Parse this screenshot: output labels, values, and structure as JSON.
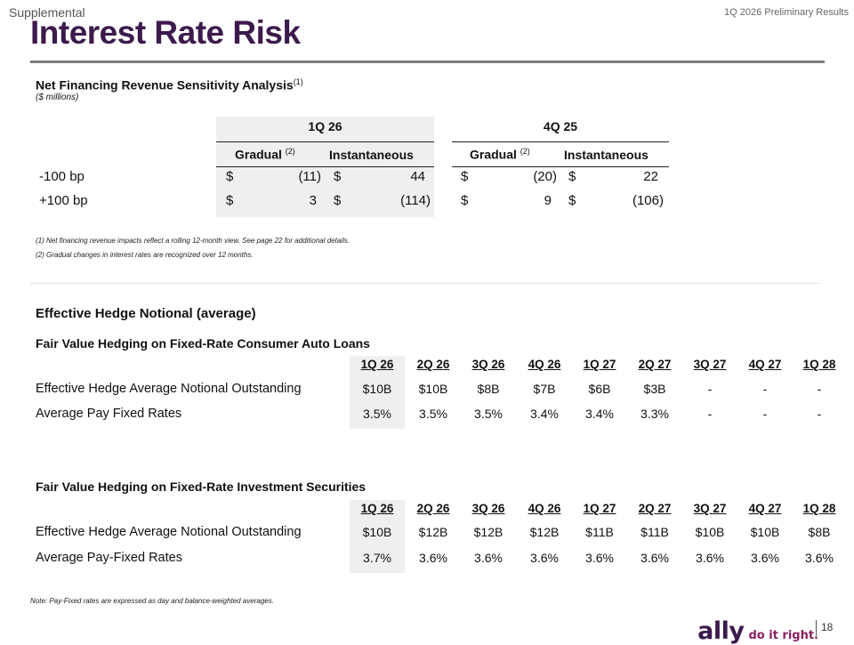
{
  "header": {
    "section": "Supplemental",
    "period_label": "1Q 2026 Preliminary Results",
    "title": "Interest Rate Risk"
  },
  "sensitivity": {
    "heading": "Net Financing Revenue Sensitivity Analysis",
    "heading_footnote": "(1)",
    "units": "($ millions)",
    "periods": [
      {
        "label": "1Q 26",
        "gradual_label": "Gradual",
        "gradual_footnote": "(2)",
        "instantaneous_label": "Instantaneous",
        "rows": [
          {
            "g_cur": "$",
            "g_val": "(11)",
            "i_cur": "$",
            "i_val": "44"
          },
          {
            "g_cur": "$",
            "g_val": "3",
            "i_cur": "$",
            "i_val": "(114)"
          }
        ]
      },
      {
        "label": "4Q 25",
        "gradual_label": "Gradual",
        "gradual_footnote": "(2)",
        "instantaneous_label": "Instantaneous",
        "rows": [
          {
            "g_cur": "$",
            "g_val": "(20)",
            "i_cur": "$",
            "i_val": "22"
          },
          {
            "g_cur": "$",
            "g_val": "9",
            "i_cur": "$",
            "i_val": "(106)"
          }
        ]
      }
    ],
    "row_labels": [
      "-100 bp",
      "+100 bp"
    ],
    "footnotes": [
      "(1) Net financing revenue impacts reflect a rolling 12-month view. See page 22 for additional details.",
      "(2) Gradual changes in interest rates are recognized over 12 months."
    ]
  },
  "hedge": {
    "heading": "Effective Hedge Notional (average)",
    "auto": {
      "heading": "Fair Value Hedging on Fixed-Rate Consumer Auto Loans",
      "columns": [
        "1Q 26",
        "2Q 26",
        "3Q 26",
        "4Q 26",
        "1Q 27",
        "2Q 27",
        "3Q 27",
        "4Q 27",
        "1Q 28"
      ],
      "rows": [
        {
          "label": "Effective Hedge Average Notional Outstanding",
          "values": [
            "$10B",
            "$10B",
            "$8B",
            "$7B",
            "$6B",
            "$3B",
            "-",
            "-",
            "-"
          ]
        },
        {
          "label": "Average Pay Fixed Rates",
          "values": [
            "3.5%",
            "3.5%",
            "3.5%",
            "3.4%",
            "3.4%",
            "3.3%",
            "-",
            "-",
            "-"
          ]
        }
      ]
    },
    "securities": {
      "heading": "Fair Value Hedging on Fixed-Rate Investment Securities",
      "columns": [
        "1Q 26",
        "2Q 26",
        "3Q 26",
        "4Q 26",
        "1Q 27",
        "2Q 27",
        "3Q 27",
        "4Q 27",
        "1Q 28"
      ],
      "rows": [
        {
          "label": "Effective Hedge Average Notional Outstanding",
          "values": [
            "$10B",
            "$12B",
            "$12B",
            "$12B",
            "$11B",
            "$11B",
            "$10B",
            "$10B",
            "$8B"
          ]
        },
        {
          "label": "Average Pay-Fixed Rates",
          "values": [
            "3.7%",
            "3.6%",
            "3.6%",
            "3.6%",
            "3.6%",
            "3.6%",
            "3.6%",
            "3.6%",
            "3.6%"
          ]
        }
      ]
    },
    "note": "Note: Pay-Fixed rates are expressed as day and balance-weighted averages."
  },
  "footer": {
    "logo_text": "ally",
    "tagline": "do it right.",
    "page_number": "18"
  },
  "colors": {
    "brand_purple": "#3c1a4c",
    "tagline_plum": "#8a2060",
    "shade": "#efefef"
  }
}
